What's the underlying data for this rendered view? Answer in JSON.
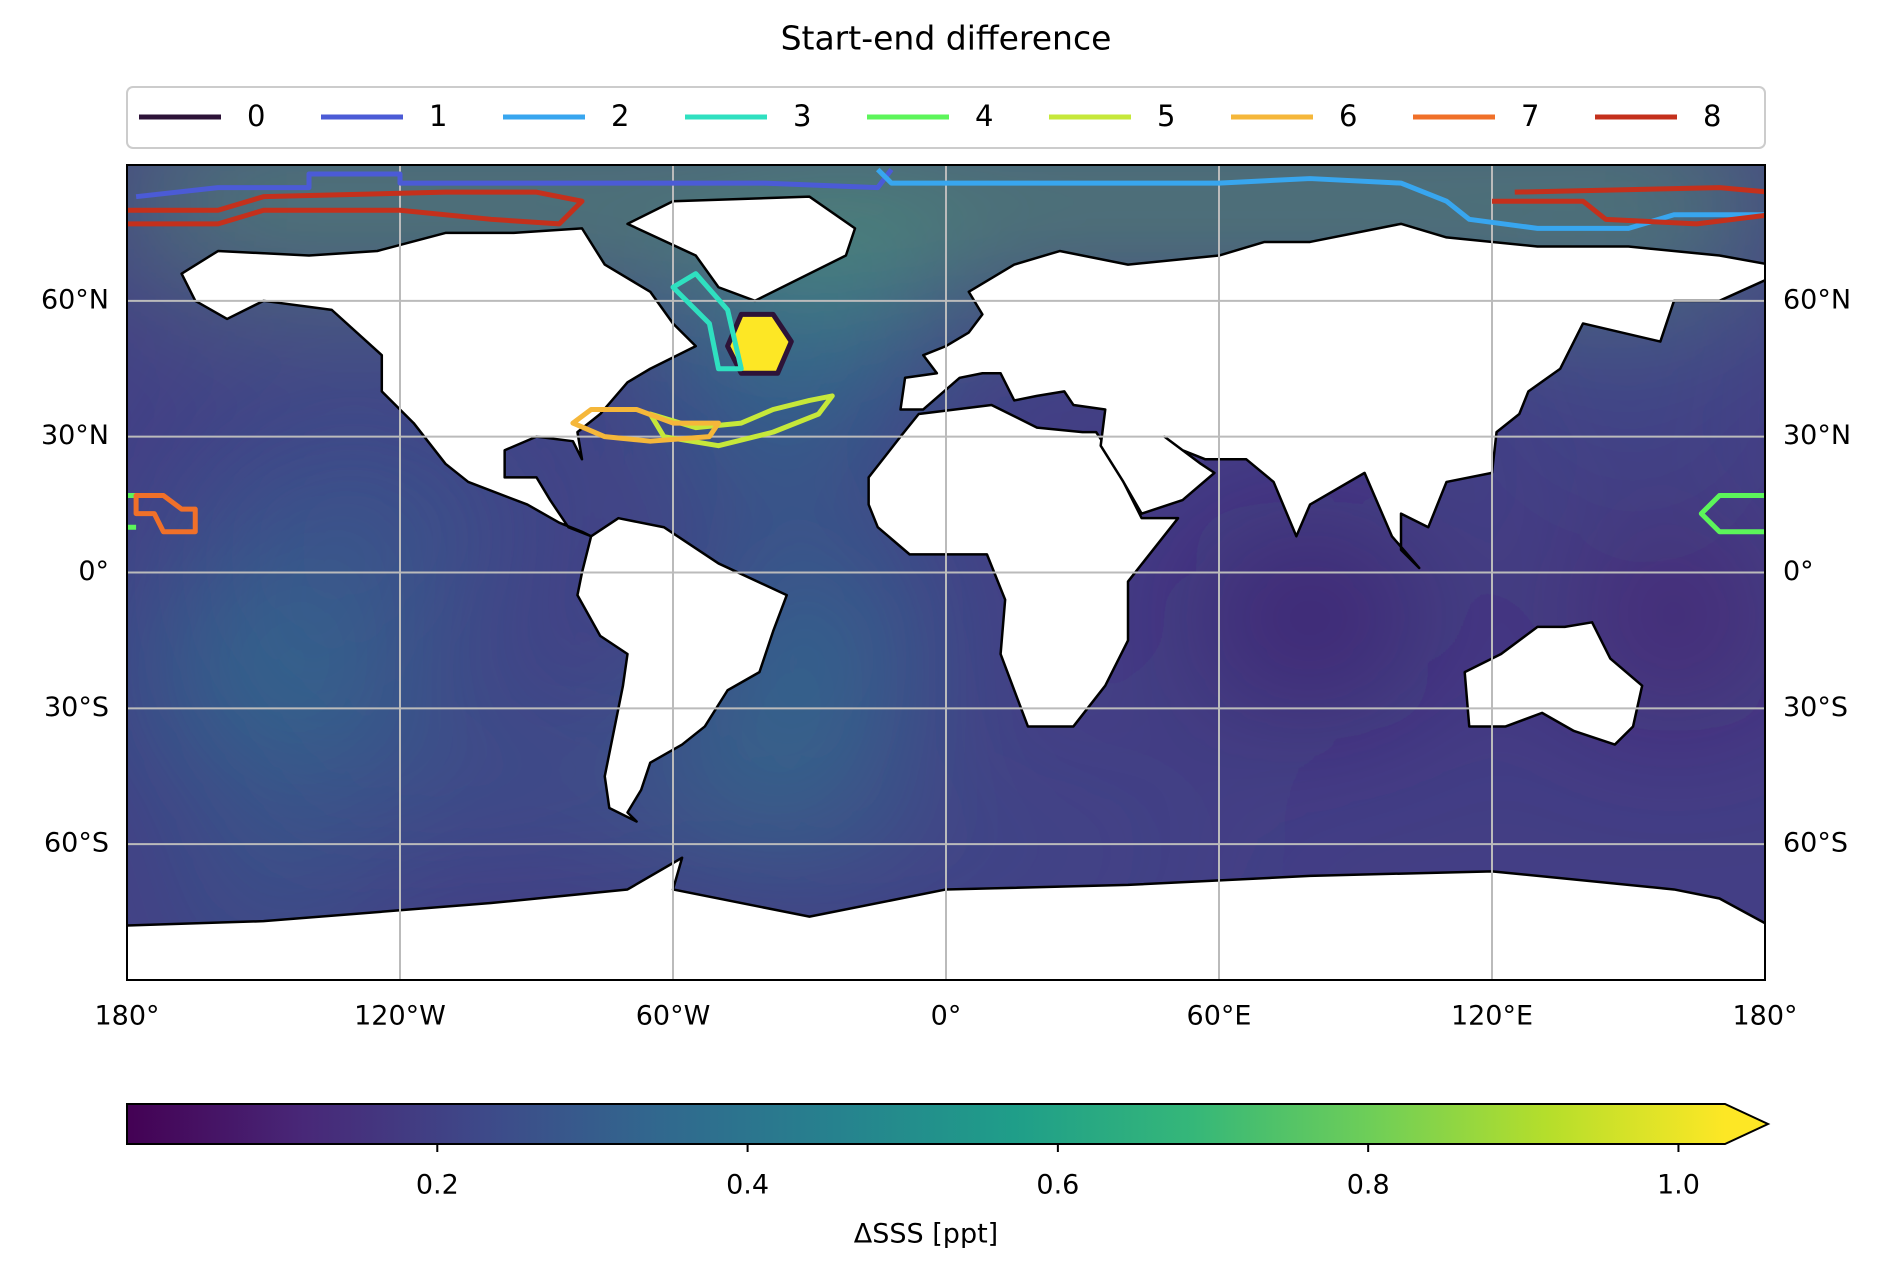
{
  "chart_data": {
    "type": "map",
    "title": "Start-end difference",
    "series": [
      {
        "name": "0",
        "color": "#2d1338"
      },
      {
        "name": "1",
        "color": "#4b5bd6"
      },
      {
        "name": "2",
        "color": "#38a6ef"
      },
      {
        "name": "3",
        "color": "#2fe0c0"
      },
      {
        "name": "4",
        "color": "#5cf55a"
      },
      {
        "name": "5",
        "color": "#c6e83a"
      },
      {
        "name": "6",
        "color": "#f5b73a"
      },
      {
        "name": "7",
        "color": "#f07029"
      },
      {
        "name": "8",
        "color": "#c4301c"
      }
    ],
    "xlim": [
      -180,
      180
    ],
    "ylim": [
      -90,
      90
    ],
    "xticks": [
      {
        "value": -180,
        "label": "180°"
      },
      {
        "value": -120,
        "label": "120°W"
      },
      {
        "value": -60,
        "label": "60°W"
      },
      {
        "value": 0,
        "label": "0°"
      },
      {
        "value": 60,
        "label": "60°E"
      },
      {
        "value": 120,
        "label": "120°E"
      },
      {
        "value": 180,
        "label": "180°"
      }
    ],
    "yticks": [
      {
        "value": -60,
        "label": "60°S"
      },
      {
        "value": -30,
        "label": "30°S"
      },
      {
        "value": 0,
        "label": "0°"
      },
      {
        "value": 30,
        "label": "30°N"
      },
      {
        "value": 60,
        "label": "60°N"
      }
    ],
    "grid": true,
    "colorbar": {
      "label": "ΔSSS [ppt]",
      "cmap": "viridis",
      "clim": [
        0,
        1.03
      ],
      "ticks": [
        0.2,
        0.4,
        0.6,
        0.8,
        {
          "value": 1,
          "label": "1.0"
        }
      ]
    }
  }
}
